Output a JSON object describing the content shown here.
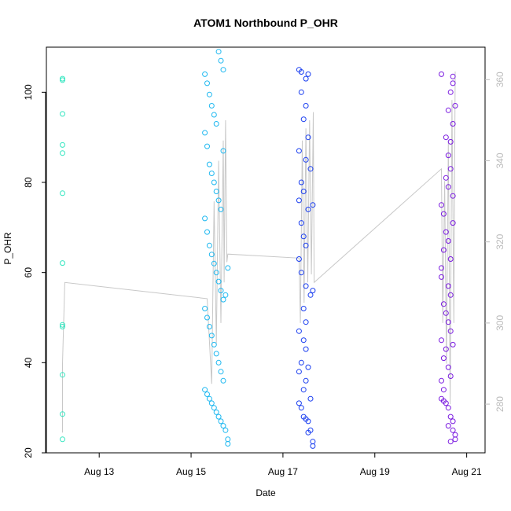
{
  "chart_data": {
    "type": "scatter",
    "title": "ATOM1 Northbound P_OHR",
    "xlabel": "Date",
    "ylabel": "P_OHR",
    "x_tick_labels": [
      "Aug 13",
      "Aug 15",
      "Aug 17",
      "Aug 19",
      "Aug 21"
    ],
    "x_tick_days": [
      13,
      15,
      17,
      19,
      21
    ],
    "xlim": [
      "Aug 11.85",
      "Aug 21.4"
    ],
    "ylim": [
      20,
      110
    ],
    "y_ticks": [
      20,
      40,
      60,
      80,
      100
    ],
    "y2_ticks": [
      280,
      300,
      320,
      340,
      360
    ],
    "y2lim": [
      268,
      368
    ],
    "grid": false,
    "legend": "none",
    "series": [
      {
        "color": "#33e6c0",
        "points": [
          [
            "Aug 12.2",
            103.0
          ],
          [
            "Aug 12.2",
            102.7
          ],
          [
            "Aug 12.2",
            95.2
          ],
          [
            "Aug 12.2",
            88.3
          ],
          [
            "Aug 12.2",
            86.5
          ],
          [
            "Aug 12.2",
            77.6
          ],
          [
            "Aug 12.2",
            62.1
          ],
          [
            "Aug 12.2",
            48.4
          ],
          [
            "Aug 12.2",
            48.0
          ],
          [
            "Aug 12.2",
            37.3
          ],
          [
            "Aug 12.2",
            28.6
          ],
          [
            "Aug 12.2",
            23.0
          ]
        ]
      },
      {
        "color": "#1eb8f0",
        "points": [
          [
            "Aug 15.3",
            104.0
          ],
          [
            "Aug 15.35",
            102.0
          ],
          [
            "Aug 15.4",
            99.5
          ],
          [
            "Aug 15.45",
            97.0
          ],
          [
            "Aug 15.5",
            95.0
          ],
          [
            "Aug 15.55",
            93.0
          ],
          [
            "Aug 15.6",
            109.0
          ],
          [
            "Aug 15.65",
            107.0
          ],
          [
            "Aug 15.7",
            105.0
          ],
          [
            "Aug 15.3",
            91.0
          ],
          [
            "Aug 15.35",
            88.0
          ],
          [
            "Aug 15.4",
            84.0
          ],
          [
            "Aug 15.45",
            82.0
          ],
          [
            "Aug 15.5",
            80.0
          ],
          [
            "Aug 15.55",
            78.0
          ],
          [
            "Aug 15.6",
            76.0
          ],
          [
            "Aug 15.65",
            74.0
          ],
          [
            "Aug 15.7",
            87.0
          ],
          [
            "Aug 15.3",
            72.0
          ],
          [
            "Aug 15.35",
            69.0
          ],
          [
            "Aug 15.4",
            66.0
          ],
          [
            "Aug 15.45",
            64.0
          ],
          [
            "Aug 15.5",
            62.0
          ],
          [
            "Aug 15.55",
            60.0
          ],
          [
            "Aug 15.6",
            58.0
          ],
          [
            "Aug 15.65",
            56.0
          ],
          [
            "Aug 15.7",
            54.0
          ],
          [
            "Aug 15.3",
            52.0
          ],
          [
            "Aug 15.35",
            50.0
          ],
          [
            "Aug 15.4",
            48.0
          ],
          [
            "Aug 15.45",
            46.0
          ],
          [
            "Aug 15.5",
            44.0
          ],
          [
            "Aug 15.55",
            42.0
          ],
          [
            "Aug 15.6",
            40.0
          ],
          [
            "Aug 15.65",
            38.0
          ],
          [
            "Aug 15.7",
            36.0
          ],
          [
            "Aug 15.3",
            34.0
          ],
          [
            "Aug 15.35",
            33.0
          ],
          [
            "Aug 15.4",
            32.0
          ],
          [
            "Aug 15.45",
            31.0
          ],
          [
            "Aug 15.5",
            30.0
          ],
          [
            "Aug 15.55",
            29.0
          ],
          [
            "Aug 15.6",
            28.0
          ],
          [
            "Aug 15.65",
            27.0
          ],
          [
            "Aug 15.7",
            26.0
          ],
          [
            "Aug 15.75",
            25.0
          ],
          [
            "Aug 15.8",
            23.0
          ],
          [
            "Aug 15.8",
            22.0
          ],
          [
            "Aug 15.75",
            55.0
          ],
          [
            "Aug 15.8",
            61.0
          ]
        ]
      },
      {
        "color": "#1a3ef0",
        "points": [
          [
            "Aug 17.35",
            105.0
          ],
          [
            "Aug 17.4",
            104.5
          ],
          [
            "Aug 17.5",
            103.0
          ],
          [
            "Aug 17.55",
            104.0
          ],
          [
            "Aug 17.4",
            100.0
          ],
          [
            "Aug 17.5",
            97.0
          ],
          [
            "Aug 17.45",
            94.0
          ],
          [
            "Aug 17.55",
            90.0
          ],
          [
            "Aug 17.35",
            87.0
          ],
          [
            "Aug 17.5",
            85.0
          ],
          [
            "Aug 17.6",
            83.0
          ],
          [
            "Aug 17.4",
            80.0
          ],
          [
            "Aug 17.45",
            78.0
          ],
          [
            "Aug 17.35",
            76.0
          ],
          [
            "Aug 17.55",
            74.0
          ],
          [
            "Aug 17.65",
            75.0
          ],
          [
            "Aug 17.4",
            71.0
          ],
          [
            "Aug 17.45",
            68.0
          ],
          [
            "Aug 17.5",
            66.0
          ],
          [
            "Aug 17.35",
            63.0
          ],
          [
            "Aug 17.4",
            60.0
          ],
          [
            "Aug 17.5",
            57.0
          ],
          [
            "Aug 17.6",
            55.0
          ],
          [
            "Aug 17.65",
            56.0
          ],
          [
            "Aug 17.45",
            52.0
          ],
          [
            "Aug 17.5",
            49.0
          ],
          [
            "Aug 17.35",
            47.0
          ],
          [
            "Aug 17.45",
            45.0
          ],
          [
            "Aug 17.5",
            43.0
          ],
          [
            "Aug 17.4",
            40.0
          ],
          [
            "Aug 17.55",
            39.0
          ],
          [
            "Aug 17.35",
            38.0
          ],
          [
            "Aug 17.5",
            36.0
          ],
          [
            "Aug 17.45",
            34.0
          ],
          [
            "Aug 17.6",
            32.0
          ],
          [
            "Aug 17.35",
            31.0
          ],
          [
            "Aug 17.4",
            30.0
          ],
          [
            "Aug 17.45",
            28.0
          ],
          [
            "Aug 17.5",
            27.5
          ],
          [
            "Aug 17.55",
            27.0
          ],
          [
            "Aug 17.6",
            25.0
          ],
          [
            "Aug 17.65",
            22.5
          ],
          [
            "Aug 17.65",
            21.5
          ],
          [
            "Aug 17.55",
            24.5
          ]
        ]
      },
      {
        "color": "#7a1ae0",
        "points": [
          [
            "Aug 20.45",
            104.0
          ],
          [
            "Aug 20.7",
            103.5
          ],
          [
            "Aug 20.7",
            102.0
          ],
          [
            "Aug 20.65",
            100.0
          ],
          [
            "Aug 20.6",
            96.0
          ],
          [
            "Aug 20.75",
            97.0
          ],
          [
            "Aug 20.7",
            93.0
          ],
          [
            "Aug 20.55",
            90.0
          ],
          [
            "Aug 20.65",
            89.0
          ],
          [
            "Aug 20.6",
            86.0
          ],
          [
            "Aug 20.65",
            83.0
          ],
          [
            "Aug 20.55",
            81.0
          ],
          [
            "Aug 20.6",
            79.0
          ],
          [
            "Aug 20.7",
            77.0
          ],
          [
            "Aug 20.45",
            75.0
          ],
          [
            "Aug 20.5",
            73.0
          ],
          [
            "Aug 20.7",
            71.0
          ],
          [
            "Aug 20.55",
            69.0
          ],
          [
            "Aug 20.6",
            67.0
          ],
          [
            "Aug 20.5",
            65.0
          ],
          [
            "Aug 20.65",
            63.0
          ],
          [
            "Aug 20.45",
            61.0
          ],
          [
            "Aug 20.45",
            59.0
          ],
          [
            "Aug 20.6",
            57.0
          ],
          [
            "Aug 20.65",
            55.0
          ],
          [
            "Aug 20.5",
            53.0
          ],
          [
            "Aug 20.55",
            51.0
          ],
          [
            "Aug 20.6",
            49.0
          ],
          [
            "Aug 20.65",
            47.0
          ],
          [
            "Aug 20.45",
            45.0
          ],
          [
            "Aug 20.7",
            44.0
          ],
          [
            "Aug 20.55",
            43.0
          ],
          [
            "Aug 20.5",
            41.0
          ],
          [
            "Aug 20.6",
            39.0
          ],
          [
            "Aug 20.65",
            37.0
          ],
          [
            "Aug 20.45",
            36.0
          ],
          [
            "Aug 20.5",
            34.0
          ],
          [
            "Aug 20.45",
            32.0
          ],
          [
            "Aug 20.5",
            31.5
          ],
          [
            "Aug 20.55",
            31.0
          ],
          [
            "Aug 20.6",
            30.0
          ],
          [
            "Aug 20.65",
            28.0
          ],
          [
            "Aug 20.7",
            27.0
          ],
          [
            "Aug 20.6",
            26.0
          ],
          [
            "Aug 20.7",
            25.0
          ],
          [
            "Aug 20.75",
            24.0
          ],
          [
            "Aug 20.75",
            23.0
          ],
          [
            "Aug 20.65",
            22.5
          ]
        ]
      }
    ],
    "secondary_line": {
      "color": "#c8c8c8",
      "points": [
        [
          "Aug 12.2",
          273
        ],
        [
          "Aug 12.2",
          290
        ],
        [
          "Aug 12.25",
          310
        ],
        [
          "Aug 15.35",
          306
        ],
        [
          "Aug 15.45",
          285
        ],
        [
          "Aug 15.5",
          330
        ],
        [
          "Aug 15.55",
          295
        ],
        [
          "Aug 15.6",
          340
        ],
        [
          "Aug 15.65",
          300
        ],
        [
          "Aug 15.7",
          345
        ],
        [
          "Aug 15.72",
          310
        ],
        [
          "Aug 15.75",
          350
        ],
        [
          "Aug 15.78",
          315
        ],
        [
          "Aug 15.8",
          317
        ],
        [
          "Aug 17.35",
          316
        ],
        [
          "Aug 17.38",
          300
        ],
        [
          "Aug 17.42",
          345
        ],
        [
          "Aug 17.46",
          305
        ],
        [
          "Aug 17.5",
          348
        ],
        [
          "Aug 17.54",
          310
        ],
        [
          "Aug 17.58",
          350
        ],
        [
          "Aug 17.62",
          312
        ],
        [
          "Aug 17.66",
          352
        ],
        [
          "Aug 17.68",
          310
        ],
        [
          "Aug 20.45",
          338
        ],
        [
          "Aug 20.48",
          300
        ],
        [
          "Aug 20.52",
          335
        ],
        [
          "Aug 20.56",
          290
        ],
        [
          "Aug 20.6",
          345
        ],
        [
          "Aug 20.64",
          280
        ],
        [
          "Aug 20.68",
          355
        ],
        [
          "Aug 20.72",
          300
        ],
        [
          "Aug 20.75",
          362
        ]
      ]
    }
  }
}
